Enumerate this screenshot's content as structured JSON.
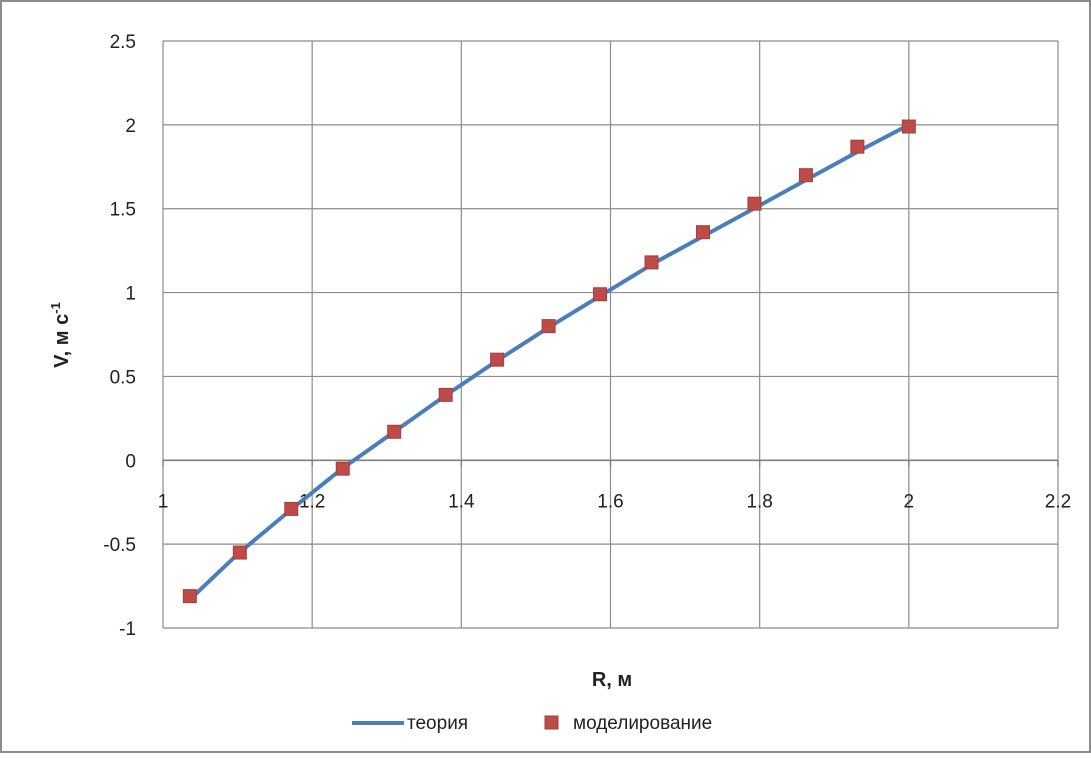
{
  "chart_data": {
    "type": "scatter",
    "title": "",
    "xlabel": "R, м",
    "ylabel_main": "V, м с",
    "ylabel_sup": "-1",
    "xlim": [
      1,
      2.2
    ],
    "ylim": [
      -1,
      2.5
    ],
    "x_ticks": [
      1,
      1.2,
      1.4,
      1.6,
      1.8,
      2,
      2.2
    ],
    "x_tick_labels": [
      "1",
      "1.2",
      "1.4",
      "1.6",
      "1.8",
      "2",
      "2.2"
    ],
    "y_ticks": [
      -1,
      -0.5,
      0,
      0.5,
      1,
      1.5,
      2,
      2.5
    ],
    "y_tick_labels": [
      "-1",
      "-0.5",
      "0",
      "0.5",
      "1",
      "1.5",
      "2",
      "2.5"
    ],
    "grid": true,
    "legend_position": "bottom",
    "series": [
      {
        "name": "теория",
        "kind": "line",
        "color": "#4a7ebb",
        "x": [
          1.036,
          1.1,
          1.17,
          1.24,
          1.31,
          1.38,
          1.45,
          1.52,
          1.59,
          1.66,
          1.73,
          1.8,
          1.87,
          1.94,
          2.0
        ],
        "y": [
          -0.83,
          -0.56,
          -0.3,
          -0.05,
          0.17,
          0.39,
          0.6,
          0.8,
          0.99,
          1.18,
          1.35,
          1.52,
          1.69,
          1.86,
          2.0
        ]
      },
      {
        "name": "моделирование",
        "kind": "marker",
        "color": "#be4b48",
        "x": [
          1.036,
          1.103,
          1.172,
          1.241,
          1.31,
          1.379,
          1.448,
          1.517,
          1.586,
          1.655,
          1.724,
          1.793,
          1.862,
          1.931,
          2.0
        ],
        "y": [
          -0.81,
          -0.55,
          -0.29,
          -0.05,
          0.17,
          0.39,
          0.6,
          0.8,
          0.99,
          1.18,
          1.36,
          1.53,
          1.7,
          1.87,
          1.99
        ]
      }
    ]
  }
}
